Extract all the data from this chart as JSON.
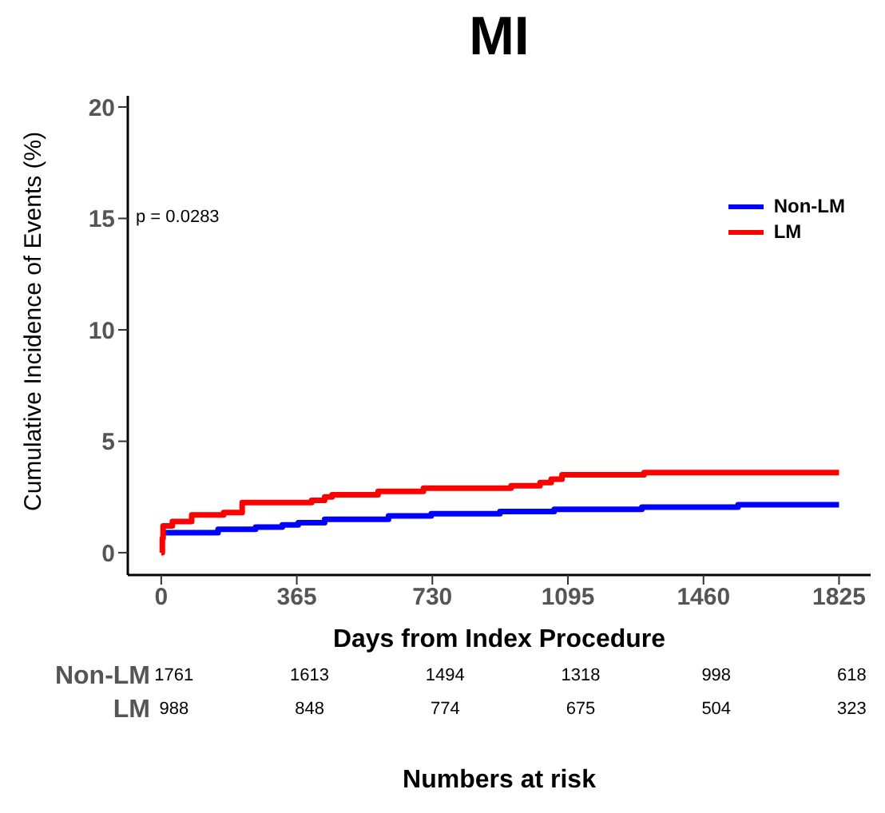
{
  "chart_data": {
    "type": "step",
    "title": "MI",
    "xlabel": "Days from Index Procedure",
    "ylabel": "Cumulative Incidence of Events (%)",
    "xlim": [
      -90,
      1910
    ],
    "xticks": [
      0,
      365,
      730,
      1095,
      1460,
      1825
    ],
    "ylim": [
      -1,
      20.5
    ],
    "yticks": [
      0,
      5,
      10,
      15,
      20
    ],
    "series": [
      {
        "name": "Non-LM",
        "color": "#0000ff",
        "x": [
          0,
          153,
          254,
          326,
          369,
          440,
          612,
          727,
          912,
          1058,
          1294,
          1553,
          1825
        ],
        "values": [
          0.9,
          1.05,
          1.15,
          1.25,
          1.35,
          1.5,
          1.65,
          1.75,
          1.85,
          1.95,
          2.05,
          2.15,
          2.15
        ]
      },
      {
        "name": "LM",
        "color": "#ff0000",
        "x": [
          0,
          3,
          5,
          30,
          82,
          168,
          218,
          405,
          440,
          460,
          584,
          706,
          942,
          1020,
          1050,
          1079,
          1300,
          1825
        ],
        "values": [
          0,
          0.65,
          1.2,
          1.4,
          1.7,
          1.8,
          2.25,
          2.35,
          2.5,
          2.6,
          2.75,
          2.9,
          3.0,
          3.15,
          3.3,
          3.5,
          3.6,
          3.6
        ]
      }
    ],
    "legend": "top right",
    "grid": false,
    "marker": "none",
    "line_style": "solid",
    "annotations": [
      "p = 0.0283",
      "Numbers at risk",
      "1761",
      "1613",
      "1494",
      "1318",
      "998",
      "618",
      "988",
      "848",
      "774",
      "675",
      "504",
      "323"
    ]
  }
}
